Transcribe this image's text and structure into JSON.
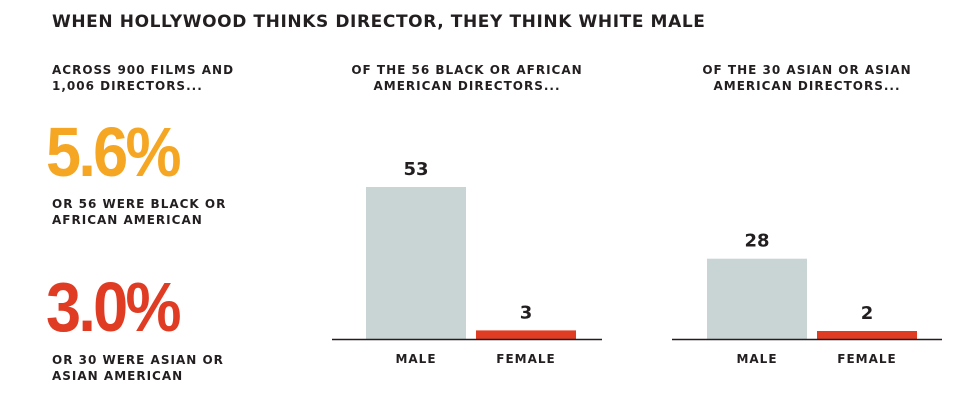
{
  "title": "WHEN HOLLYWOOD THINKS DIRECTOR, THEY THINK WHITE MALE",
  "intro": {
    "line1": "ACROSS 900 FILMS AND",
    "line2": "1,006 DIRECTORS..."
  },
  "stats": [
    {
      "value": "5.6%",
      "caption_line1": "OR 56 WERE BLACK OR",
      "caption_line2": "AFRICAN AMERICAN",
      "color": "#f5a623"
    },
    {
      "value": "3.0%",
      "caption_line1": "OR 30 WERE ASIAN OR",
      "caption_line2": "ASIAN AMERICAN",
      "color": "#e03c24"
    }
  ],
  "colors": {
    "male_bar": "#c9d4d5",
    "female_bar": "#e03c24",
    "baseline": "#231f20",
    "text": "#231f20"
  },
  "chart_data": [
    {
      "type": "bar",
      "title_line1": "OF THE 56 BLACK OR AFRICAN",
      "title_line2": "AMERICAN DIRECTORS...",
      "categories": [
        "MALE",
        "FEMALE"
      ],
      "values": [
        53,
        3
      ],
      "data_labels": [
        "53",
        "3"
      ],
      "xlabel": "",
      "ylabel": "",
      "ylim": [
        0,
        60
      ],
      "grid": false
    },
    {
      "type": "bar",
      "title_line1": "OF THE 30 ASIAN OR ASIAN",
      "title_line2": "AMERICAN DIRECTORS...",
      "categories": [
        "MALE",
        "FEMALE"
      ],
      "values": [
        28,
        2
      ],
      "data_labels": [
        "28",
        "2"
      ],
      "xlabel": "",
      "ylabel": "",
      "ylim": [
        0,
        60
      ],
      "grid": false
    }
  ]
}
